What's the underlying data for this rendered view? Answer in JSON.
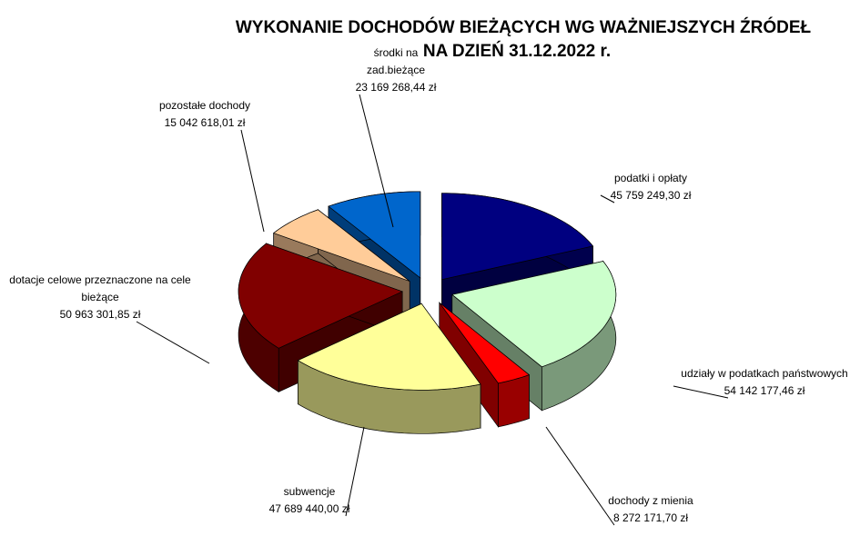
{
  "chart_data": {
    "type": "pie3d",
    "title": [
      "WYKONANIE DOCHODÓW BIEŻĄCYCH WG WAŻNIEJSZYCH ŹRÓDEŁ",
      "NA DZIEŃ 31.12.2022 r."
    ],
    "categories": [
      "podatki i opłaty",
      "udziały w podatkach państwowych",
      "dochody z mienia",
      "subwencje",
      "dotacje celowe  przeznaczone na cele bieżące",
      "pozostałe dochody",
      "środki na zad.bieżące"
    ],
    "values": [
      45759249.3,
      54142177.46,
      8272171.7,
      47689440.0,
      50963301.85,
      15042618.01,
      23169268.44
    ],
    "value_labels": [
      "45 759 249,30 zł",
      "54 142 177,46 zł",
      "8 272 171,70 zł",
      "47 689 440,00 zł",
      "50 963 301,85 zł",
      "15 042 618,01 zł",
      "23 169 268,44 zł"
    ],
    "colors": [
      "#000080",
      "#ccffcc",
      "#ff0000",
      "#ffff99",
      "#800000",
      "#ffcc99",
      "#0066cc"
    ]
  }
}
